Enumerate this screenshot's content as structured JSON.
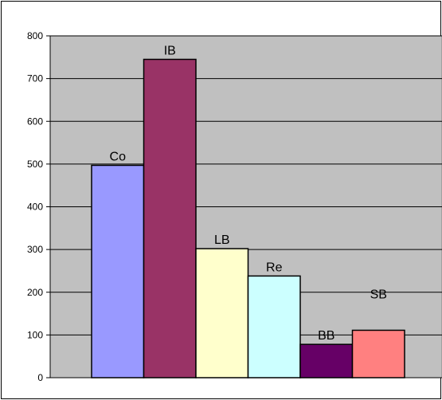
{
  "chart_data": {
    "type": "bar",
    "title": "",
    "xlabel": "",
    "ylabel": "",
    "categories": [
      "Co",
      "IB",
      "LB",
      "Re",
      "BB",
      "SB"
    ],
    "values": [
      497,
      745,
      302,
      238,
      78,
      111
    ],
    "colors": [
      "#9999ff",
      "#993366",
      "#ffffcc",
      "#ccffff",
      "#660066",
      "#ff8080"
    ],
    "ylim": [
      0,
      800
    ],
    "yticks": [
      "0",
      "100",
      "200",
      "300",
      "400",
      "500",
      "600",
      "700",
      "800"
    ],
    "grid": true,
    "plot_background": "#c0c0c0",
    "legend": "none"
  }
}
